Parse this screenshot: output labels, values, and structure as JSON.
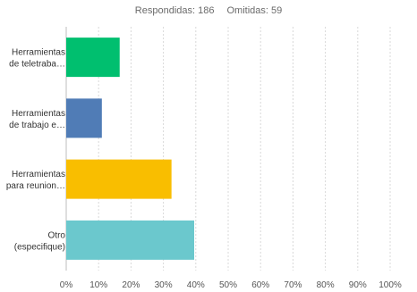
{
  "header": {
    "answered_label": "Respondidas: 186",
    "skipped_label": "Omitidas: 59"
  },
  "chart_data": {
    "type": "bar",
    "orientation": "horizontal",
    "categories": [
      [
        "Herramientas",
        "de teletraba…"
      ],
      [
        "Herramientas",
        "de trabajo e…"
      ],
      [
        "Herramientas",
        "para reunion…"
      ],
      [
        "Otro",
        "(especifique)"
      ]
    ],
    "values": [
      16.5,
      11,
      32.5,
      39.5
    ],
    "colors": [
      "#00bf6f",
      "#507cb6",
      "#f9be00",
      "#6bc8cd"
    ],
    "xlim": [
      0,
      100
    ],
    "xticks": [
      "0%",
      "10%",
      "20%",
      "30%",
      "40%",
      "50%",
      "60%",
      "70%",
      "80%",
      "90%",
      "100%"
    ],
    "grid": "vertical dashed"
  }
}
